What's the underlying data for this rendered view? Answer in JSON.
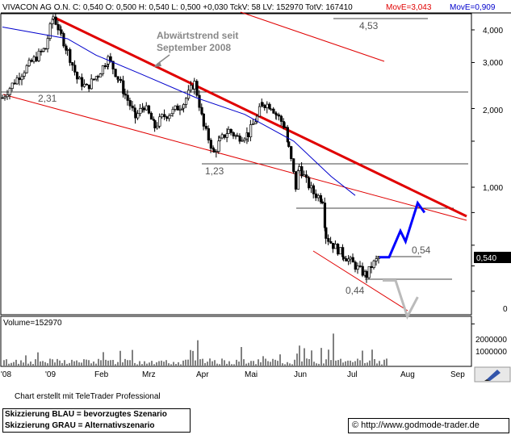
{
  "header": {
    "ticker_line": "VIVACON AG O.N.  C: 0,540 O: 0,500 H: 0,540 L: 0,500 +0,030 TckV: 58 LV: 152970 TotV: 167410",
    "move_a": "MovE=3,043",
    "move_b": "MovE=0,909",
    "move_a_color": "#e00000",
    "move_b_color": "#0000cc"
  },
  "chart_data": [
    {
      "type": "line",
      "title": "VIVACON AG O.N.",
      "y_scale": "log",
      "y_ticks": [
        "4,000",
        "3,000",
        "2,000",
        "1,000",
        "0"
      ],
      "x_ticks": [
        "'08",
        "'09",
        "Feb",
        "Mrz",
        "Apr",
        "Mai",
        "Jun",
        "Jul",
        "Aug",
        "Sep"
      ],
      "last_price_label": "0,540",
      "annotations": {
        "trend_text": [
          "Abwärtstrend seit",
          "September 2008"
        ],
        "levels": [
          "4,53",
          "2,31",
          "1,23",
          "0,54",
          "0,44"
        ]
      },
      "level_values": {
        "4,53": 4.53,
        "2,31": 2.31,
        "1,23": 1.23,
        "0,54": 0.54,
        "0,44": 0.44
      },
      "series": [
        {
          "name": "Kurs",
          "color": "#000000",
          "points": [
            [
              "2008-12-29",
              2.2
            ],
            [
              "2009-01-02",
              3.4
            ],
            [
              "2009-01-07",
              4.5
            ],
            [
              "2009-01-12",
              3.8
            ],
            [
              "2009-01-16",
              3.3
            ],
            [
              "2009-01-22",
              2.6
            ],
            [
              "2009-01-28",
              2.4
            ],
            [
              "2009-02-04",
              2.7
            ],
            [
              "2009-02-10",
              3.1
            ],
            [
              "2009-02-16",
              2.6
            ],
            [
              "2009-02-20",
              2.25
            ],
            [
              "2009-02-26",
              1.85
            ],
            [
              "2009-03-03",
              2.05
            ],
            [
              "2009-03-09",
              1.7
            ],
            [
              "2009-03-13",
              1.85
            ],
            [
              "2009-03-19",
              1.95
            ],
            [
              "2009-03-25",
              2.1
            ],
            [
              "2009-03-31",
              2.5
            ],
            [
              "2009-04-06",
              1.7
            ],
            [
              "2009-04-13",
              1.35
            ],
            [
              "2009-04-17",
              1.5
            ],
            [
              "2009-04-23",
              1.65
            ],
            [
              "2009-04-29",
              1.55
            ],
            [
              "2009-05-06",
              1.6
            ],
            [
              "2009-05-11",
              1.85
            ],
            [
              "2009-05-14",
              2.1
            ],
            [
              "2009-05-19",
              2.05
            ],
            [
              "2009-05-22",
              1.9
            ],
            [
              "2009-05-27",
              1.7
            ],
            [
              "2009-05-29",
              1.4
            ],
            [
              "2009-06-02",
              1.0
            ],
            [
              "2009-06-04",
              1.2
            ],
            [
              "2009-06-08",
              1.05
            ],
            [
              "2009-06-12",
              0.95
            ],
            [
              "2009-06-17",
              0.9
            ],
            [
              "2009-06-19",
              0.65
            ],
            [
              "2009-06-23",
              0.6
            ],
            [
              "2009-06-29",
              0.55
            ],
            [
              "2009-07-03",
              0.52
            ],
            [
              "2009-07-09",
              0.48
            ],
            [
              "2009-07-13",
              0.46
            ],
            [
              "2009-07-16",
              0.5
            ],
            [
              "2009-07-21",
              0.54
            ]
          ]
        },
        {
          "name": "MovE=0,909",
          "color": "#0000cc",
          "points": [
            [
              "2008-12-29",
              4.1
            ],
            [
              "2009-01-16",
              3.7
            ],
            [
              "2009-02-03",
              3.2
            ],
            [
              "2009-03-02",
              2.7
            ],
            [
              "2009-04-01",
              2.2
            ],
            [
              "2009-05-04",
              1.9
            ],
            [
              "2009-06-01",
              1.5
            ],
            [
              "2009-06-22",
              1.1
            ],
            [
              "2009-07-06",
              0.93
            ]
          ]
        }
      ],
      "scenarios": {
        "blue": {
          "color": "#0000ff",
          "points": [
            [
              "2009-07-21",
              0.54
            ],
            [
              "2009-07-27",
              0.54
            ],
            [
              "2009-08-03",
              0.68
            ],
            [
              "2009-08-06",
              0.62
            ],
            [
              "2009-08-13",
              0.87
            ],
            [
              "2009-08-17",
              0.8
            ]
          ]
        },
        "grey": {
          "color": "#bbbbbb",
          "points": [
            [
              "2009-07-23",
              0.44
            ],
            [
              "2009-07-31",
              0.44
            ],
            [
              "2009-08-07",
              0.32
            ],
            [
              "2009-08-13",
              0.38
            ]
          ]
        }
      }
    },
    {
      "type": "bar",
      "title": "Volume",
      "legend": "Volume=152970",
      "y_ticks": [
        "2000000",
        "1000000"
      ],
      "ylim": [
        0,
        2700000
      ],
      "note": "daily volume bars"
    }
  ],
  "footer": {
    "credit": "Chart erstellt mit TeleTrader Professional",
    "legend_blue": "Skizzierung BLAU = bevorzugtes Szenario",
    "legend_grey": "Skizzierung GRAU = Alternativszenario",
    "copyright": "©",
    "url": "http://www.godmode-trader.de"
  }
}
